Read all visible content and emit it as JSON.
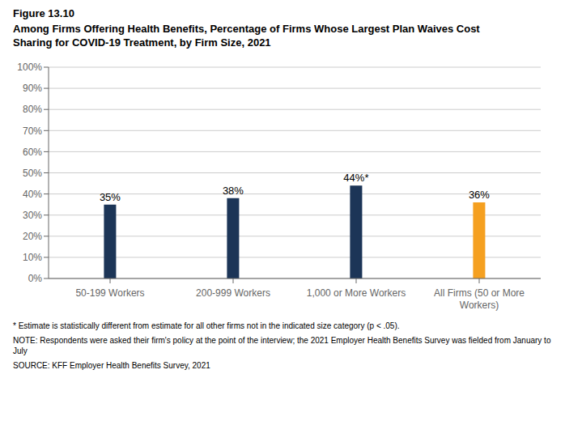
{
  "chart_data": {
    "type": "bar",
    "title": "Figure 13.10",
    "subtitle": "Among Firms Offering Health Benefits, Percentage of Firms Whose Largest Plan Waives Cost\nSharing for COVID-19 Treatment, by Firm Size, 2021",
    "categories": [
      "50-199 Workers",
      "200-999 Workers",
      "1,000 or More Workers",
      "All Firms (50 or More\nWorkers)"
    ],
    "values": [
      35,
      38,
      44,
      36
    ],
    "value_labels": [
      "35%",
      "38%",
      "44%*",
      "36%"
    ],
    "data_labels": true,
    "colors": [
      "#1c3557",
      "#1c3557",
      "#1c3557",
      "#f5a020"
    ],
    "ylim": [
      0,
      100
    ],
    "yticks": [
      {
        "value": 0,
        "label": "0%"
      },
      {
        "value": 10,
        "label": "10%"
      },
      {
        "value": 20,
        "label": "20%"
      },
      {
        "value": 30,
        "label": "30%"
      },
      {
        "value": 40,
        "label": "40%"
      },
      {
        "value": 50,
        "label": "50%"
      },
      {
        "value": 60,
        "label": "60%"
      },
      {
        "value": 70,
        "label": "70%"
      },
      {
        "value": 80,
        "label": "80%"
      },
      {
        "value": 90,
        "label": "90%"
      },
      {
        "value": 100,
        "label": "100%"
      }
    ],
    "grid": true,
    "annotations": [
      "* Estimate is statistically different from estimate for all other firms not in the indicated size category (p < .05).",
      "NOTE: Respondents were asked their firm's policy at the point of the interview; the 2021 Employer Health Benefits Survey was fielded from January to\nJuly",
      "SOURCE: KFF Employer Health Benefits Survey, 2021"
    ]
  }
}
